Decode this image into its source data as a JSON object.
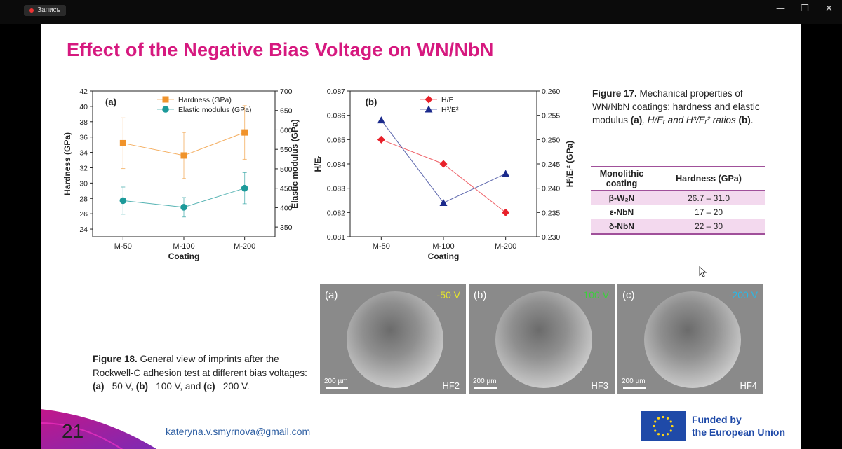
{
  "recorder": {
    "label": "Запись"
  },
  "window": {
    "minimize": "—",
    "restore": "❐",
    "close": "✕"
  },
  "slide": {
    "title": "Effect of the Negative Bias Voltage on WN/NbN",
    "page_number": "21",
    "email": "kateryna.v.smyrnova@gmail.com",
    "funding_line1": "Funded by",
    "funding_line2": "the European Union"
  },
  "chart_data": [
    {
      "type": "line",
      "panel": "(a)",
      "categories": [
        "M-50",
        "M-100",
        "M-200"
      ],
      "xlabel": "Coating",
      "ylabel_left": "Hardness (GPa)",
      "ylabel_right": "Elastic modulus (GPa)",
      "ylim_left": [
        23,
        42
      ],
      "yticks_left": [
        24,
        26,
        28,
        30,
        32,
        34,
        36,
        38,
        40,
        42
      ],
      "ylim_right": [
        325,
        700
      ],
      "yticks_right": [
        350,
        400,
        450,
        500,
        550,
        600,
        650,
        700
      ],
      "legend": "top-left",
      "series": [
        {
          "name": "Hardness (GPa)",
          "axis": "left",
          "marker": "square",
          "color": "#f0932b",
          "values": [
            35.2,
            33.6,
            36.6
          ],
          "err": [
            3.3,
            3.0,
            3.5
          ]
        },
        {
          "name": "Elastic modulus (GPa)",
          "axis": "right",
          "marker": "circle",
          "color": "#1c9a9a",
          "values": [
            418,
            401,
            450
          ],
          "err": [
            35,
            25,
            40
          ]
        }
      ]
    },
    {
      "type": "line",
      "panel": "(b)",
      "categories": [
        "M-50",
        "M-100",
        "M-200"
      ],
      "xlabel": "Coating",
      "ylabel_left": "H/Eᵣ",
      "ylabel_right": "H³/Eᵣ² (GPa)",
      "ylim_left": [
        0.081,
        0.087
      ],
      "yticks_left": [
        "0.081",
        "0.082",
        "0.083",
        "0.084",
        "0.085",
        "0.086",
        "0.087"
      ],
      "ylim_right": [
        0.23,
        0.26
      ],
      "yticks_right": [
        "0.230",
        "0.235",
        "0.240",
        "0.245",
        "0.250",
        "0.255",
        "0.260"
      ],
      "legend": "top-center",
      "series": [
        {
          "name": "H/E",
          "axis": "left",
          "marker": "diamond",
          "color": "#e8202a",
          "values": [
            0.085,
            0.084,
            0.082
          ]
        },
        {
          "name": "H³/E²",
          "axis": "right",
          "marker": "triangle",
          "color": "#1b2a8c",
          "values": [
            0.254,
            0.237,
            0.243
          ]
        }
      ]
    }
  ],
  "figure17": {
    "label": "Figure 17.",
    "text1": " Mechanical properties of WN/NbN coatings: hardness and elastic modulus ",
    "a": "(a)",
    "text2": ", H/Eᵣ and H³/Eᵣ² ratios ",
    "b": "(b)",
    "text3": "."
  },
  "table": {
    "headers": [
      "Monolithic coating",
      "Hardness (GPa)"
    ],
    "rows": [
      {
        "phase": "β-W₂N",
        "hardness": "26.7 – 31.0"
      },
      {
        "phase": "ε-NbN",
        "hardness": "17 – 20"
      },
      {
        "phase": "δ-NbN",
        "hardness": "22 – 30"
      }
    ]
  },
  "figure18": {
    "label": "Figure 18.",
    "text1": " General view of imprints after the Rockwell-C adhesion test at different bias voltages: ",
    "a": "(a)",
    "t_a": " –50 V, ",
    "b": "(b)",
    "t_b": " –100 V, and ",
    "c": "(c)",
    "t_c": " –200 V."
  },
  "sem_images": [
    {
      "label": "(a)",
      "voltage": "-50 V",
      "voltage_color": "#e6e62a",
      "scale": "200 µm",
      "code": "HF2"
    },
    {
      "label": "(b)",
      "voltage": "-100 V",
      "voltage_color": "#3ccf3c",
      "scale": "200 µm",
      "code": "HF3"
    },
    {
      "label": "(c)",
      "voltage": "-200 V",
      "voltage_color": "#2ab8e6",
      "scale": "200 µm",
      "code": "HF4"
    }
  ]
}
